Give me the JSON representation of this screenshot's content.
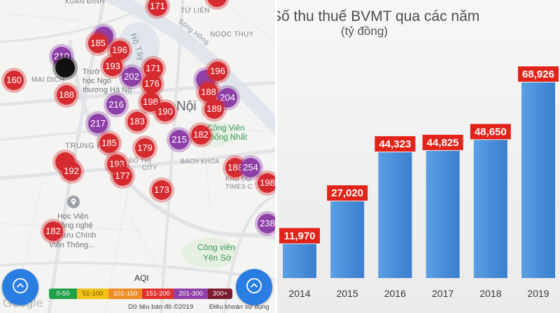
{
  "map": {
    "places": {
      "xuan_dinh": "XUÂN ĐỈNH",
      "tu_lien": "TỨ LIÊN",
      "song_hong": "Sông Hồng",
      "ngoc_thuy": "NGỌC THỤY",
      "ho_tay": "Hồ Tây",
      "mai_dich": "MAI DỊCH",
      "uni_line1": "Trườ",
      "uni_line2": "học Ngo",
      "uni_line3": "thương Hà Nộ",
      "ha_noi": "Nội",
      "park1_line1": "Công Viên",
      "park1_line2": "hống Nhất",
      "trung_hoa": "TRUNG HÒA",
      "do_thi": "ĐÔ THỊ",
      "city": "CITY",
      "bach_khoa": "BÁCH KHOA",
      "khu_do": "KHU ĐÔ",
      "times_city": "TIMES C",
      "academy_line1": "Học Viện",
      "academy_line2": "Công nghệ",
      "academy_line3": "Bưu Chính",
      "academy_line4": "Viễn Thông...",
      "park2_line1": "Công viên",
      "park2_line2": "Yên Sở"
    },
    "markers": [
      {
        "value": "171",
        "color": "#d52b30"
      },
      {
        "value": "",
        "color": "#d52b30"
      },
      {
        "value": "",
        "color": "#8e3fa8"
      },
      {
        "value": "185",
        "color": "#d52b30"
      },
      {
        "value": "196",
        "color": "#d52b30"
      },
      {
        "value": "210",
        "color": "#8e3fa8"
      },
      {
        "value": "",
        "color": "#111111"
      },
      {
        "value": "193",
        "color": "#d52b30"
      },
      {
        "value": "160",
        "color": "#d52b30"
      },
      {
        "value": "202",
        "color": "#8e3fa8"
      },
      {
        "value": "171",
        "color": "#d52b30"
      },
      {
        "value": "176",
        "color": "#d52b30"
      },
      {
        "value": "",
        "color": "#8e3fa8"
      },
      {
        "value": "196",
        "color": "#d52b30"
      },
      {
        "value": "188",
        "color": "#d52b30"
      },
      {
        "value": "188",
        "color": "#d52b30"
      },
      {
        "value": "204",
        "color": "#8e3fa8"
      },
      {
        "value": "216",
        "color": "#8e3fa8"
      },
      {
        "value": "198",
        "color": "#d52b30"
      },
      {
        "value": "190",
        "color": "#d52b30"
      },
      {
        "value": "189",
        "color": "#d52b30"
      },
      {
        "value": "217",
        "color": "#8e3fa8"
      },
      {
        "value": "183",
        "color": "#d52b30"
      },
      {
        "value": "215",
        "color": "#8e3fa8"
      },
      {
        "value": "182",
        "color": "#d52b30"
      },
      {
        "value": "185",
        "color": "#d52b30"
      },
      {
        "value": "179",
        "color": "#d52b30"
      },
      {
        "value": "",
        "color": "#d52b30"
      },
      {
        "value": "192",
        "color": "#d52b30"
      },
      {
        "value": "193",
        "color": "#d52b30"
      },
      {
        "value": "177",
        "color": "#d52b30"
      },
      {
        "value": "188",
        "color": "#d52b30"
      },
      {
        "value": "254",
        "color": "#8e3fa8"
      },
      {
        "value": "198",
        "color": "#d52b30"
      },
      {
        "value": "173",
        "color": "#d52b30"
      },
      {
        "value": "238",
        "color": "#8e3fa8"
      },
      {
        "value": "182",
        "color": "#d52b30"
      }
    ],
    "legend": {
      "title": "AQI",
      "items": [
        {
          "label": "0-50",
          "color": "#1fa14a"
        },
        {
          "label": "51-100",
          "color": "#f2c218"
        },
        {
          "label": "101-150",
          "color": "#f08a24"
        },
        {
          "label": "151-200",
          "color": "#e0312d"
        },
        {
          "label": "201-300",
          "color": "#8f3fa8"
        },
        {
          "label": "300+",
          "color": "#7a1a2c"
        }
      ]
    },
    "icons": {
      "scroll_up": "chevron-up-icon",
      "place_pin": "pin-icon"
    },
    "logo": "Google",
    "attribution": "Dữ liệu bản đồ ©2019",
    "terms": "Điều khoản sử dụng"
  },
  "chart_data": {
    "type": "bar",
    "title": "Số thu thuế BVMT qua các năm",
    "subtitle": "(tỷ đồng)",
    "categories": [
      "2014",
      "2015",
      "2016",
      "2017",
      "2018",
      "2019"
    ],
    "values": [
      11970,
      27020,
      44323,
      44825,
      48650,
      68926
    ],
    "xlabel": "",
    "ylabel": "",
    "grid": false,
    "colors": {
      "bar_light": "#5b9fe4",
      "bar_dark": "#3a7ecf",
      "label_bg": "#e2231a",
      "label_text": "#ffffff",
      "axis_text": "#3a3a3a"
    }
  }
}
